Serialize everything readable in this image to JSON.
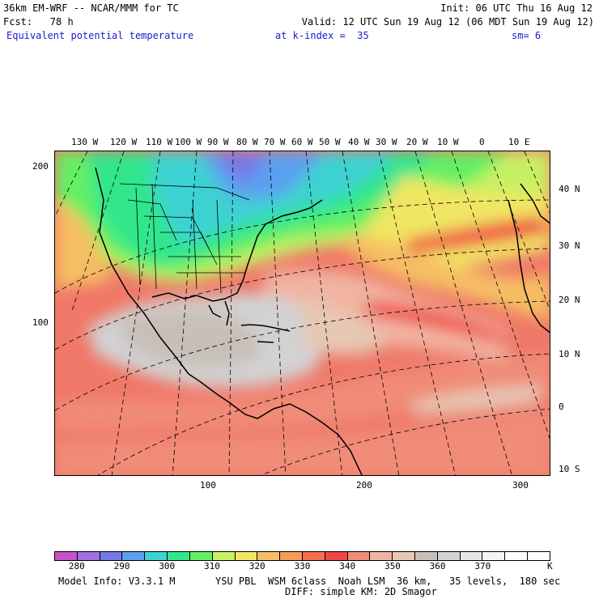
{
  "header": {
    "line1_left": "36km EM-WRF -- NCAR/MMM for TC",
    "line1_right": "Init: 06 UTC Thu 16 Aug 12",
    "line2_left": "Fcst:   78 h",
    "line2_right": "Valid: 12 UTC Sun 19 Aug 12 (06 MDT Sun 19 Aug 12)",
    "field": "Equivalent potential temperature",
    "level": "at k-index =  35",
    "smoothing": "sm= 6"
  },
  "map": {
    "lon_labels": [
      "130 W",
      "120 W",
      "110 W",
      "100 W",
      "90 W",
      "80 W",
      "70 W",
      "60 W",
      "50 W",
      "40 W",
      "30 W",
      "20 W",
      "10 W",
      "0",
      "10 E"
    ],
    "lat_labels": [
      "40 N",
      "30 N",
      "20 N",
      "10 N",
      "0",
      "10 S"
    ],
    "grid_y_labels": [
      "200",
      "100"
    ],
    "grid_x_labels": [
      "100",
      "200",
      "300"
    ]
  },
  "colorbar": {
    "colors": [
      "#c850c8",
      "#a070e0",
      "#7878e8",
      "#5aa0f0",
      "#3cd2d2",
      "#32e68c",
      "#64f064",
      "#c8f064",
      "#f0e664",
      "#f5be64",
      "#f59a5a",
      "#f56e50",
      "#f04646",
      "#f08c78",
      "#f0b4a0",
      "#e6c8b4",
      "#c8c0b8",
      "#d2d2d2",
      "#e6e6e6",
      "#f5f5f5",
      "#ffffff",
      "#ffffff"
    ],
    "ticks": [
      "280",
      "290",
      "300",
      "310",
      "320",
      "330",
      "340",
      "350",
      "360",
      "370"
    ],
    "unit": "K"
  },
  "footer": {
    "line1_left": "Model Info: V3.3.1 M",
    "line1_right": "YSU PBL  WSM 6class  Noah LSM  36 km,   35 levels,  180 sec",
    "line2": "DIFF: simple KM: 2D Smagor"
  }
}
